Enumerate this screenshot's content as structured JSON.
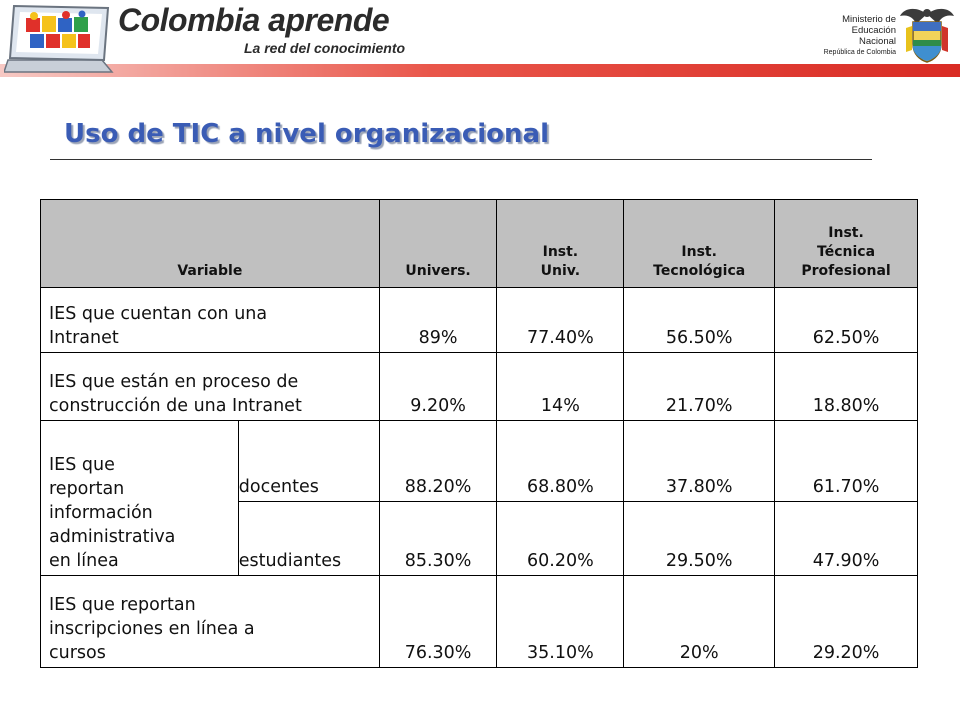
{
  "header": {
    "brand_name": "Colombia aprende",
    "brand_tagline": "La red del conocimiento",
    "ministry_line1": "Ministerio de",
    "ministry_line2": "Educación",
    "ministry_line3": "Nacional",
    "ministry_line4": "República de Colombia"
  },
  "title": "Uso de TIC a nivel organizacional",
  "table": {
    "headers": {
      "variable": "Variable",
      "univers": "Univers.",
      "inst_univ_1": "Inst.",
      "inst_univ_2": "Univ.",
      "inst_tec_1": "Inst.",
      "inst_tec_2": "Tecnológica",
      "inst_tp_1": "Inst.",
      "inst_tp_2": "Técnica",
      "inst_tp_3": "Profesional"
    },
    "rows": [
      {
        "label_1": "IES que cuentan con una",
        "label_2": "Intranet",
        "values": [
          "89%",
          "77.40%",
          "56.50%",
          "62.50%"
        ]
      },
      {
        "label_1": "IES que están en proceso de",
        "label_2": "construcción de una Intranet",
        "values": [
          "9.20%",
          "14%",
          "21.70%",
          "18.80%"
        ]
      },
      {
        "label_1": "IES que",
        "label_2": "reportan",
        "label_3": "información",
        "label_4": "administrativa",
        "label_5": "en línea",
        "subrows": [
          {
            "label": "docentes",
            "values": [
              "88.20%",
              "68.80%",
              "37.80%",
              "61.70%"
            ]
          },
          {
            "label": "estudiantes",
            "values": [
              "85.30%",
              "60.20%",
              "29.50%",
              "47.90%"
            ]
          }
        ]
      },
      {
        "label_1": "IES que reportan",
        "label_2": "inscripciones en línea a",
        "label_3": "cursos",
        "values": [
          "76.30%",
          "35.10%",
          "20%",
          "29.20%"
        ]
      }
    ]
  },
  "colors": {
    "title": "#3a5cb5",
    "header_fill": "#c0c0c0",
    "band": "#d92b24"
  }
}
